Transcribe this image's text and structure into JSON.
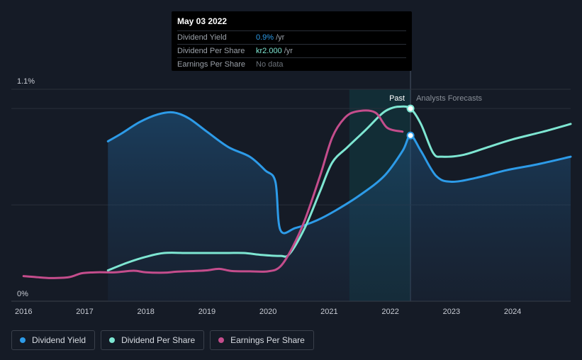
{
  "colors": {
    "background": "#151b26",
    "dividend_yield": "#2d9be8",
    "dividend_per_share": "#7ee6d2",
    "earnings_per_share": "#c44d8c",
    "grid": "#2a303b",
    "forecast_band": "#12303a"
  },
  "tooltip": {
    "date": "May 03 2022",
    "rows": [
      {
        "label": "Dividend Yield",
        "value": "0.9%",
        "unit": "/yr"
      },
      {
        "label": "Dividend Per Share",
        "value": "kr2.000",
        "unit": "/yr"
      },
      {
        "label": "Earnings Per Share",
        "value": "No data",
        "unit": ""
      }
    ]
  },
  "annotations": {
    "past": "Past",
    "forecast": "Analysts Forecasts"
  },
  "legend": [
    {
      "label": "Dividend Yield",
      "color": "#2d9be8"
    },
    {
      "label": "Dividend Per Share",
      "color": "#7ee6d2"
    },
    {
      "label": "Earnings Per Share",
      "color": "#c44d8c"
    }
  ],
  "chart_data": {
    "type": "line",
    "title": "",
    "xlabel": "",
    "ylabel": "",
    "y_tick_labels": [
      "1.1%",
      "0%"
    ],
    "ylim": [
      0,
      1.1
    ],
    "xlim": [
      2015.8,
      2024.95
    ],
    "x_ticks": [
      2016,
      2017,
      2018,
      2019,
      2020,
      2021,
      2022,
      2023,
      2024
    ],
    "x_tick_labels": [
      "2016",
      "2017",
      "2018",
      "2019",
      "2020",
      "2021",
      "2022",
      "2023",
      "2024"
    ],
    "past_region_start": 2021.33,
    "forecast_start": 2022.33,
    "series": [
      {
        "name": "Dividend Yield",
        "filled": true,
        "points": [
          [
            2017.38,
            0.83
          ],
          [
            2017.6,
            0.87
          ],
          [
            2017.9,
            0.93
          ],
          [
            2018.2,
            0.97
          ],
          [
            2018.45,
            0.98
          ],
          [
            2018.7,
            0.95
          ],
          [
            2019.0,
            0.88
          ],
          [
            2019.35,
            0.8
          ],
          [
            2019.7,
            0.75
          ],
          [
            2019.95,
            0.68
          ],
          [
            2020.12,
            0.62
          ],
          [
            2020.2,
            0.37
          ],
          [
            2020.45,
            0.38
          ],
          [
            2020.8,
            0.42
          ],
          [
            2021.1,
            0.47
          ],
          [
            2021.5,
            0.55
          ],
          [
            2021.9,
            0.65
          ],
          [
            2022.2,
            0.78
          ],
          [
            2022.33,
            0.86
          ],
          [
            2022.5,
            0.78
          ],
          [
            2022.75,
            0.65
          ],
          [
            2023.0,
            0.62
          ],
          [
            2023.4,
            0.64
          ],
          [
            2023.9,
            0.68
          ],
          [
            2024.4,
            0.71
          ],
          [
            2024.95,
            0.75
          ]
        ]
      },
      {
        "name": "Dividend Per Share",
        "filled": false,
        "points": [
          [
            2017.38,
            0.16
          ],
          [
            2017.7,
            0.2
          ],
          [
            2018.0,
            0.23
          ],
          [
            2018.3,
            0.25
          ],
          [
            2018.7,
            0.25
          ],
          [
            2019.3,
            0.25
          ],
          [
            2019.6,
            0.25
          ],
          [
            2019.9,
            0.24
          ],
          [
            2020.2,
            0.235
          ],
          [
            2020.35,
            0.245
          ],
          [
            2020.6,
            0.38
          ],
          [
            2020.85,
            0.57
          ],
          [
            2021.05,
            0.72
          ],
          [
            2021.3,
            0.8
          ],
          [
            2021.6,
            0.89
          ],
          [
            2021.85,
            0.97
          ],
          [
            2022.0,
            1.0
          ],
          [
            2022.15,
            1.01
          ],
          [
            2022.33,
            1.0
          ],
          [
            2022.5,
            0.92
          ],
          [
            2022.7,
            0.77
          ],
          [
            2022.85,
            0.75
          ],
          [
            2023.2,
            0.76
          ],
          [
            2023.6,
            0.8
          ],
          [
            2024.0,
            0.84
          ],
          [
            2024.5,
            0.88
          ],
          [
            2024.95,
            0.92
          ]
        ]
      },
      {
        "name": "Earnings Per Share",
        "filled": false,
        "points": [
          [
            2016.0,
            0.13
          ],
          [
            2016.2,
            0.125
          ],
          [
            2016.45,
            0.12
          ],
          [
            2016.75,
            0.125
          ],
          [
            2016.95,
            0.145
          ],
          [
            2017.2,
            0.15
          ],
          [
            2017.5,
            0.15
          ],
          [
            2017.8,
            0.158
          ],
          [
            2018.0,
            0.15
          ],
          [
            2018.3,
            0.148
          ],
          [
            2018.5,
            0.153
          ],
          [
            2018.8,
            0.157
          ],
          [
            2019.0,
            0.16
          ],
          [
            2019.2,
            0.168
          ],
          [
            2019.4,
            0.157
          ],
          [
            2019.7,
            0.155
          ],
          [
            2020.0,
            0.155
          ],
          [
            2020.2,
            0.18
          ],
          [
            2020.4,
            0.28
          ],
          [
            2020.6,
            0.42
          ],
          [
            2020.85,
            0.65
          ],
          [
            2021.05,
            0.85
          ],
          [
            2021.25,
            0.95
          ],
          [
            2021.45,
            0.985
          ],
          [
            2021.75,
            0.98
          ],
          [
            2021.95,
            0.9
          ],
          [
            2022.2,
            0.88
          ]
        ]
      }
    ],
    "highlight": {
      "x": 2022.33,
      "label": "May 03 2022",
      "dividend_yield": 0.86,
      "dividend_per_share": 1.0
    }
  }
}
